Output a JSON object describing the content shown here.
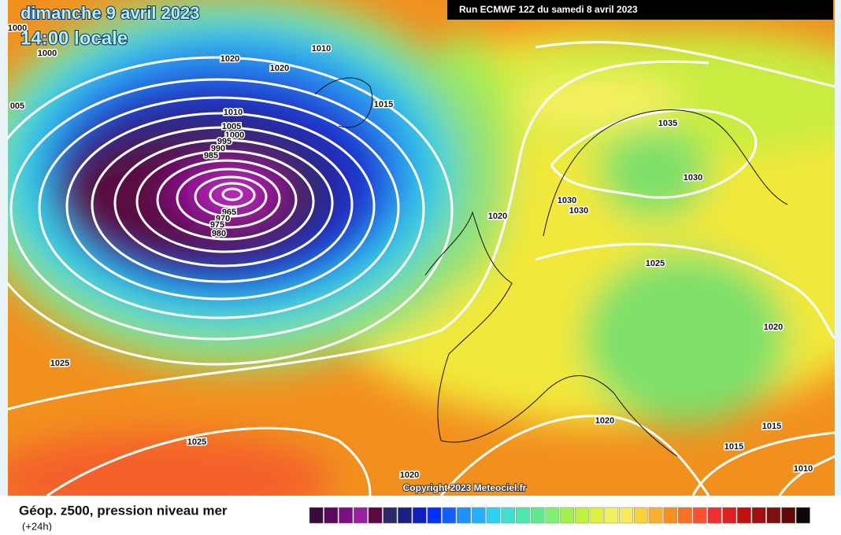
{
  "header": {
    "date": "dimanche 9 avril 2023",
    "time": "14:00 locale",
    "run": "Run ECMWF 12Z du samedi 8 avril 2023"
  },
  "map": {
    "isobar_labels": [
      "1000",
      "1000",
      "005",
      "1020",
      "1020",
      "1010",
      "1015",
      "1010",
      "1005",
      "1000",
      "995",
      "990",
      "985",
      "965",
      "970",
      "975",
      "980",
      "1035",
      "1030",
      "1030",
      "1030",
      "1020",
      "1025",
      "1020",
      "1025",
      "1025",
      "1020",
      "1015",
      "1015",
      "1020",
      "1010"
    ],
    "copyright": "Copyright 2023 Meteociel.fr"
  },
  "legend": {
    "title": "Géop. z500, pression niveau mer",
    "subtitle": "(+24h)",
    "colors": [
      "#3a0a3a",
      "#5a0a5a",
      "#7a1080",
      "#9a20a0",
      "#5a0a40",
      "#2a2a6a",
      "#1a2080",
      "#1020c0",
      "#0030ff",
      "#1060ff",
      "#2090ff",
      "#20b0ff",
      "#30d0f0",
      "#40e0d0",
      "#50e8b0",
      "#60e890",
      "#80f070",
      "#a0f050",
      "#c0f040",
      "#e0f040",
      "#f0f060",
      "#f8e860",
      "#f8d040",
      "#f8b030",
      "#f89020",
      "#f87020",
      "#f85030",
      "#f03030",
      "#e02020",
      "#c01010",
      "#a01010",
      "#801010",
      "#600808",
      "#100808"
    ]
  }
}
